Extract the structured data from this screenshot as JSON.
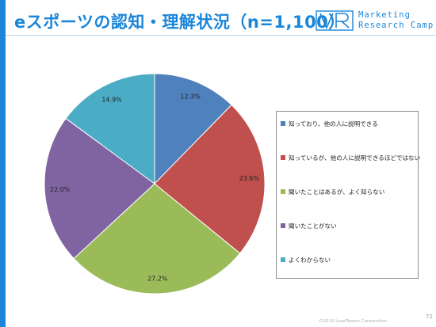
{
  "title": "eスポーツの認知・理解状況（n=1,100）",
  "logo": {
    "line1": "Marketing",
    "line2": "Research Camp"
  },
  "colors": {
    "accent": "#1b86d8"
  },
  "chart_data": {
    "type": "pie",
    "title": "",
    "series": [
      {
        "name": "知っており、他の人に説明できる",
        "value": 12.3,
        "label": "12.3%",
        "color": "#4f81bd"
      },
      {
        "name": "知っているが、他の人に説明できるほどではない",
        "value": 23.6,
        "label": "23.6%",
        "color": "#c0504d"
      },
      {
        "name": "聞いたことはあるが、よく知らない",
        "value": 27.2,
        "label": "27.2%",
        "color": "#9bbb59"
      },
      {
        "name": "聞いたことがない",
        "value": 22.0,
        "label": "22.0%",
        "color": "#8064a2"
      },
      {
        "name": "よくわからない",
        "value": 14.9,
        "label": "14.9%",
        "color": "#4bacc6"
      }
    ],
    "legend": "right"
  },
  "footer": {
    "copyright": "©2019 LeadTeams Corporation",
    "page_number": "72"
  }
}
